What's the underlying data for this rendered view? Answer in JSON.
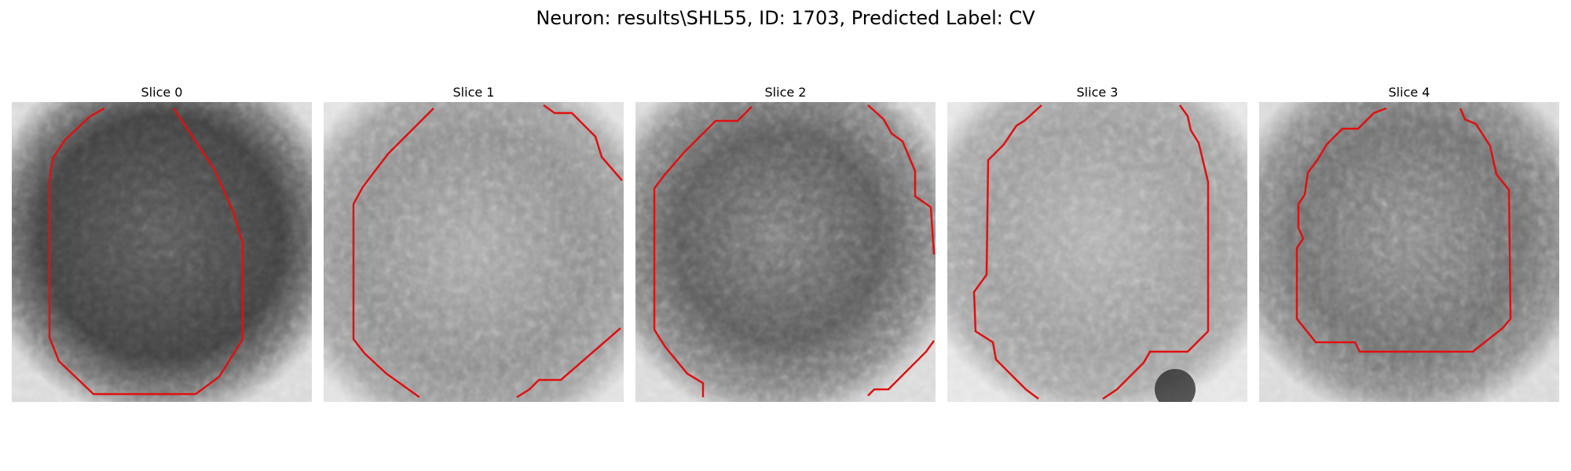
{
  "figure": {
    "title": "Neuron: results\\SHL55, ID: 1703, Predicted Label: CV",
    "panels": [
      {
        "title": "Slice 0",
        "tone": "dark"
      },
      {
        "title": "Slice 1",
        "tone": "light"
      },
      {
        "title": "Slice 2",
        "tone": "mid-dark"
      },
      {
        "title": "Slice 3",
        "tone": "light"
      },
      {
        "title": "Slice 4",
        "tone": "mid"
      }
    ],
    "contour_color": "#e01010",
    "colormap": "gray"
  }
}
